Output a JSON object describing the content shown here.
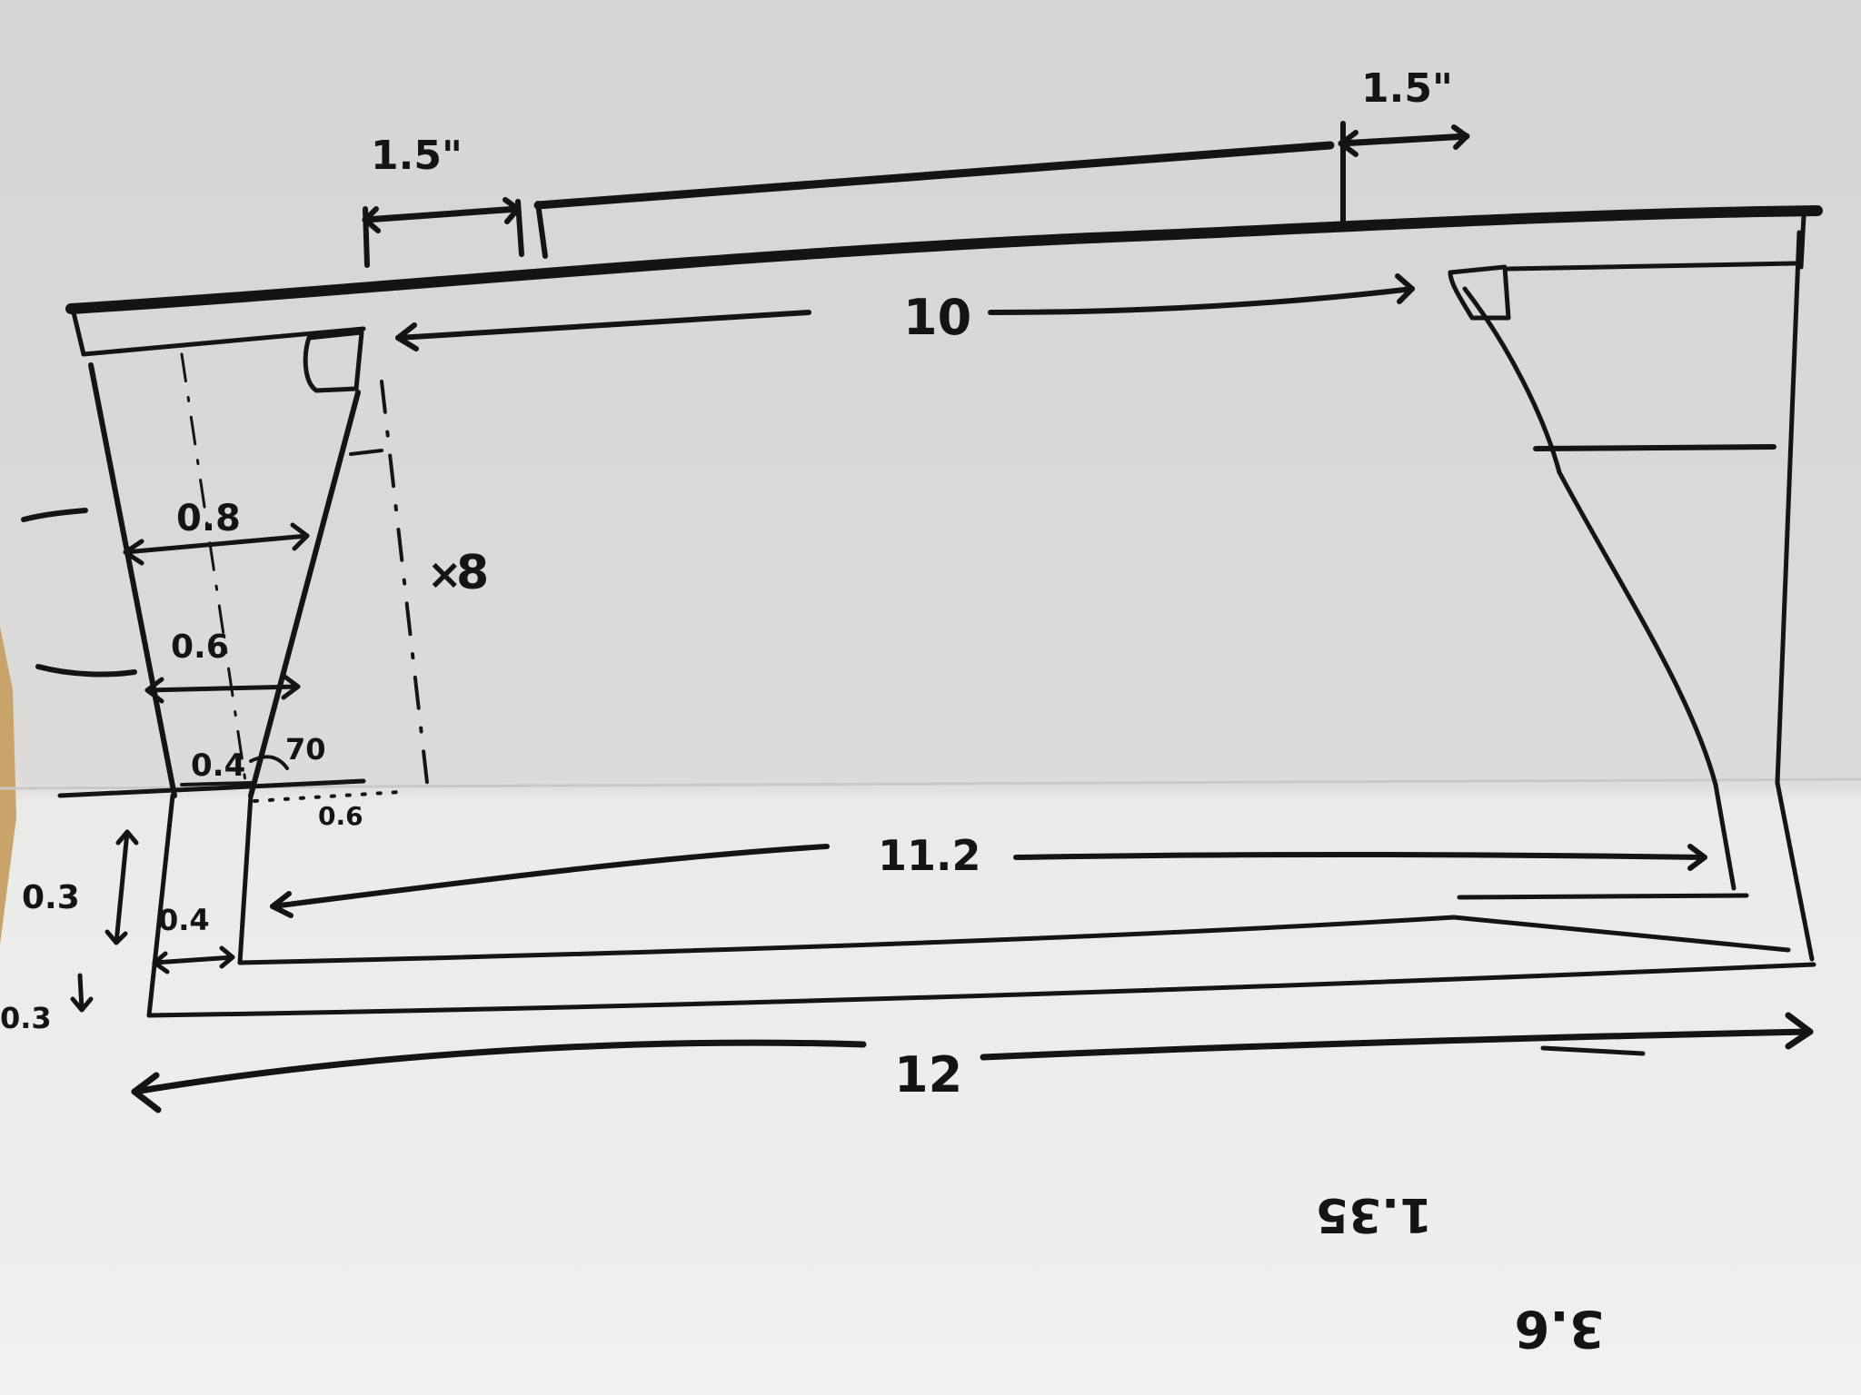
{
  "colors": {
    "paper_top": "#d7d6d4",
    "paper_bottom": "#efefed",
    "ink": "#141414",
    "wood": "#c9a46a"
  },
  "labels": {
    "overhang_left": "1.5\"",
    "overhang_right": "1.5\"",
    "top_inner_length": "10",
    "height_value": "8",
    "width_upper": "0.8",
    "width_middle": "0.6",
    "width_lower": "0.4",
    "angle_value": "70",
    "offset_value": "0.6",
    "base_inner_length": "11.2",
    "base_height_upper": "0.3",
    "base_height_lower": "0.3",
    "base_width": "0.4",
    "base_total_length": "12",
    "note_upside_down_1": "1.35",
    "note_upside_down_2": "3.6"
  }
}
